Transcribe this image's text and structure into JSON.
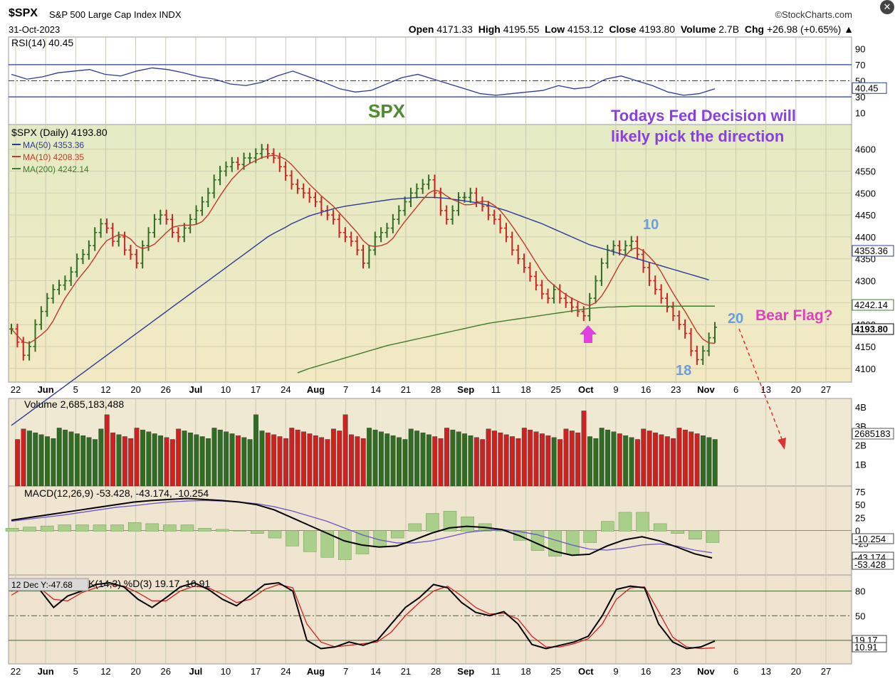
{
  "header": {
    "symbol": "$SPX",
    "description": "S&P 500 Large Cap Index INDX",
    "date": "31-Oct-2023",
    "brand": "©StockCharts.com",
    "open_label": "Open",
    "open": "4171.33",
    "high_label": "High",
    "high": "4195.55",
    "low_label": "Low",
    "low": "4153.12",
    "close_label": "Close",
    "close": "4193.80",
    "volume_label": "Volume",
    "volume": "2.7B",
    "chg_label": "Chg",
    "chg": "+26.98 (+0.65%)"
  },
  "annotations": {
    "spx": "SPX",
    "fed_line1": "Todays Fed Decision will",
    "fed_line2": "likely pick the direction",
    "bear_flag": "Bear Flag?",
    "label_10": "10",
    "label_18": "18",
    "label_20": "20",
    "tooltip": "12 Dec Y:-47.68"
  },
  "colors": {
    "up": "#2f6e22",
    "down": "#cc2222",
    "ma50": "#2b3a9c",
    "ma10": "#c0392b",
    "ma200": "#3e7d2a",
    "price_bg": "#eaedc2",
    "annotation_purple": "#8a3fe0",
    "annotation_pink": "#e040c0",
    "annotation_blue": "#6a9ee0",
    "annotation_green": "#4e8a30"
  },
  "chart_data": [
    {
      "type": "line",
      "panel": "rsi",
      "label": "RSI(14) 40.45",
      "ylim": [
        0,
        100
      ],
      "ticks": [
        "90",
        "70",
        "50",
        "30",
        "10"
      ],
      "levels": [
        70,
        30
      ],
      "current": "40.45",
      "series": [
        {
          "name": "RSI(14)",
          "values": [
            58,
            52,
            55,
            60,
            62,
            64,
            58,
            56,
            62,
            66,
            64,
            60,
            55,
            52,
            46,
            44,
            48,
            56,
            62,
            55,
            48,
            40,
            36,
            38,
            46,
            54,
            58,
            52,
            46,
            40,
            34,
            32,
            34,
            36,
            38,
            44,
            40,
            42,
            52,
            56,
            50,
            44,
            36,
            32,
            34,
            40
          ]
        }
      ]
    },
    {
      "type": "bar",
      "panel": "price",
      "label": "$SPX (Daily) 4193.80",
      "ylim": [
        4085,
        4640
      ],
      "ticks": [
        "4600",
        "4550",
        "4500",
        "4450",
        "4400",
        "4350",
        "4300",
        "4250",
        "4200",
        "4150",
        "4100"
      ],
      "x_tick_labels": [
        "22",
        "Jun",
        "5",
        "12",
        "20",
        "26",
        "Jul",
        "10",
        "17",
        "24",
        "Aug",
        "7",
        "14",
        "21",
        "28",
        "Sep",
        "11",
        "18",
        "25",
        "Oct",
        "9",
        "16",
        "23",
        "Nov",
        "6",
        "13",
        "20",
        "27"
      ],
      "legend": [
        {
          "name": "MA(50) 4353.36"
        },
        {
          "name": "MA(10) 4208.35"
        },
        {
          "name": "MA(200) 4242.14"
        }
      ],
      "right_labels": [
        "4353.36",
        "4242.14",
        "4193.80"
      ],
      "close": [
        4190,
        4160,
        4130,
        4150,
        4200,
        4230,
        4260,
        4280,
        4290,
        4300,
        4320,
        4350,
        4360,
        4380,
        4410,
        4430,
        4420,
        4390,
        4400,
        4370,
        4360,
        4340,
        4380,
        4410,
        4440,
        4450,
        4440,
        4410,
        4400,
        4420,
        4440,
        4460,
        4480,
        4500,
        4530,
        4550,
        4560,
        4570,
        4565,
        4580,
        4580,
        4590,
        4600,
        4590,
        4580,
        4560,
        4540,
        4520,
        4510,
        4500,
        4490,
        4480,
        4460,
        4450,
        4440,
        4410,
        4400,
        4390,
        4370,
        4340,
        4370,
        4400,
        4410,
        4420,
        4440,
        4460,
        4480,
        4500,
        4510,
        4520,
        4530,
        4500,
        4460,
        4440,
        4460,
        4490,
        4490,
        4500,
        4480,
        4470,
        4450,
        4440,
        4420,
        4400,
        4370,
        4350,
        4330,
        4310,
        4290,
        4270,
        4260,
        4280,
        4260,
        4250,
        4240,
        4230,
        4220,
        4260,
        4300,
        4340,
        4370,
        4380,
        4370,
        4380,
        4390,
        4360,
        4330,
        4300,
        4280,
        4260,
        4240,
        4220,
        4200,
        4180,
        4140,
        4120,
        4140,
        4170,
        4194
      ],
      "ma50": [
        3970,
        3980,
        3990,
        4000,
        4010,
        4020,
        4030,
        4040,
        4050,
        4060,
        4070,
        4080,
        4090,
        4100,
        4110,
        4120,
        4130,
        4140,
        4150,
        4160,
        4170,
        4180,
        4190,
        4200,
        4210,
        4220,
        4230,
        4240,
        4250,
        4260,
        4270,
        4280,
        4290,
        4300,
        4310,
        4320,
        4330,
        4340,
        4350,
        4360,
        4370,
        4380,
        4390,
        4400,
        4408,
        4415,
        4422,
        4430,
        4436,
        4442,
        4448,
        4452,
        4456,
        4460,
        4464,
        4467,
        4470,
        4472,
        4474,
        4476,
        4478,
        4480,
        4482,
        4484,
        4486,
        4487,
        4488,
        4489,
        4490,
        4490,
        4490,
        4490,
        4489,
        4488,
        4486,
        4484,
        4482,
        4480,
        4478,
        4475,
        4472,
        4468,
        4464,
        4460,
        4455,
        4450,
        4445,
        4440,
        4435,
        4430,
        4424,
        4418,
        4412,
        4406,
        4400,
        4394,
        4388,
        4382,
        4378,
        4374,
        4370,
        4366,
        4362,
        4358,
        4354,
        4350,
        4346,
        4342,
        4338,
        4334,
        4330,
        4326,
        4322,
        4318,
        4314,
        4310,
        4306,
        4302,
        4353
      ],
      "ma200": [
        3850,
        3852,
        3854,
        3856,
        3858,
        3860,
        3862,
        3864,
        3866,
        3868,
        3870,
        3872,
        3874,
        3876,
        3878,
        3880,
        3882,
        3884,
        3886,
        3888,
        3890,
        3892,
        3894,
        3896,
        3898,
        3900,
        3902,
        3904,
        3906,
        3908,
        3910,
        3912,
        3914,
        3916,
        3918,
        3920,
        3922,
        3924,
        3926,
        3928,
        3930,
        3932,
        3934,
        3936,
        3938,
        3940,
        3942,
        3944,
        4090,
        4095,
        4100,
        4104,
        4108,
        4112,
        4116,
        4120,
        4124,
        4128,
        4132,
        4136,
        4140,
        4144,
        4148,
        4152,
        4155,
        4158,
        4161,
        4164,
        4167,
        4170,
        4173,
        4176,
        4179,
        4182,
        4185,
        4188,
        4191,
        4194,
        4197,
        4200,
        4203,
        4205,
        4207,
        4209,
        4211,
        4213,
        4215,
        4217,
        4219,
        4221,
        4223,
        4225,
        4227,
        4229,
        4231,
        4233,
        4235,
        4237,
        4238,
        4239,
        4240,
        4240,
        4241,
        4241,
        4242,
        4242,
        4242,
        4242,
        4242,
        4242,
        4242,
        4242,
        4242,
        4242,
        4242,
        4242,
        4242,
        4242,
        4242
      ]
    },
    {
      "type": "bar",
      "panel": "volume",
      "label": "Volume 2,685,183,488",
      "ticks": [
        "4B",
        "3B",
        "2B",
        "1B"
      ],
      "current": "2685183"
    },
    {
      "type": "line",
      "panel": "macd",
      "label": "MACD(12,26,9) -53.428, -43.174, -10.254",
      "ylim": [
        -75,
        75
      ],
      "ticks": [
        "75",
        "50",
        "25",
        "0",
        "-25",
        "-50"
      ],
      "right_labels": [
        "-10.254",
        "-43.174",
        "-53.428"
      ],
      "series": [
        {
          "name": "MACD(12,26,9)",
          "values": [
            20,
            25,
            30,
            35,
            40,
            45,
            50,
            55,
            58,
            60,
            62,
            60,
            58,
            55,
            50,
            40,
            25,
            10,
            -5,
            -20,
            -28,
            -32,
            -30,
            -18,
            -5,
            5,
            8,
            6,
            2,
            -10,
            -25,
            -40,
            -48,
            -46,
            -30,
            -18,
            -12,
            -20,
            -32,
            -45,
            -53
          ]
        },
        {
          "name": "Signal",
          "values": [
            18,
            22,
            26,
            30,
            35,
            40,
            45,
            48,
            52,
            55,
            57,
            58,
            57,
            55,
            52,
            46,
            38,
            28,
            18,
            5,
            -8,
            -18,
            -24,
            -24,
            -20,
            -12,
            -4,
            0,
            2,
            -2,
            -8,
            -18,
            -28,
            -36,
            -38,
            -34,
            -28,
            -26,
            -30,
            -38,
            -43
          ]
        }
      ]
    },
    {
      "type": "line",
      "panel": "stochastics",
      "label": "K(14,3) %D(3) 19.17, 10.91",
      "ylim": [
        0,
        100
      ],
      "ticks": [
        "80",
        "50",
        "20"
      ],
      "right_labels": [
        "19.17",
        "10.91"
      ],
      "series": [
        {
          "name": "%K(14,3)",
          "values": [
            80,
            90,
            82,
            60,
            74,
            80,
            88,
            90,
            85,
            70,
            60,
            72,
            85,
            90,
            82,
            70,
            62,
            75,
            88,
            90,
            80,
            20,
            10,
            12,
            18,
            14,
            20,
            40,
            60,
            72,
            88,
            84,
            66,
            54,
            50,
            55,
            40,
            15,
            10,
            14,
            18,
            25,
            50,
            82,
            86,
            84,
            40,
            18,
            10,
            12,
            19.17
          ]
        },
        {
          "name": "%D(3)",
          "values": [
            75,
            85,
            84,
            70,
            68,
            78,
            84,
            88,
            86,
            78,
            68,
            68,
            80,
            86,
            84,
            76,
            66,
            70,
            82,
            88,
            84,
            40,
            18,
            12,
            14,
            16,
            18,
            30,
            50,
            66,
            80,
            86,
            74,
            60,
            52,
            53,
            46,
            25,
            12,
            12,
            16,
            22,
            40,
            70,
            84,
            85,
            55,
            24,
            12,
            10,
            10.91
          ]
        }
      ]
    }
  ]
}
